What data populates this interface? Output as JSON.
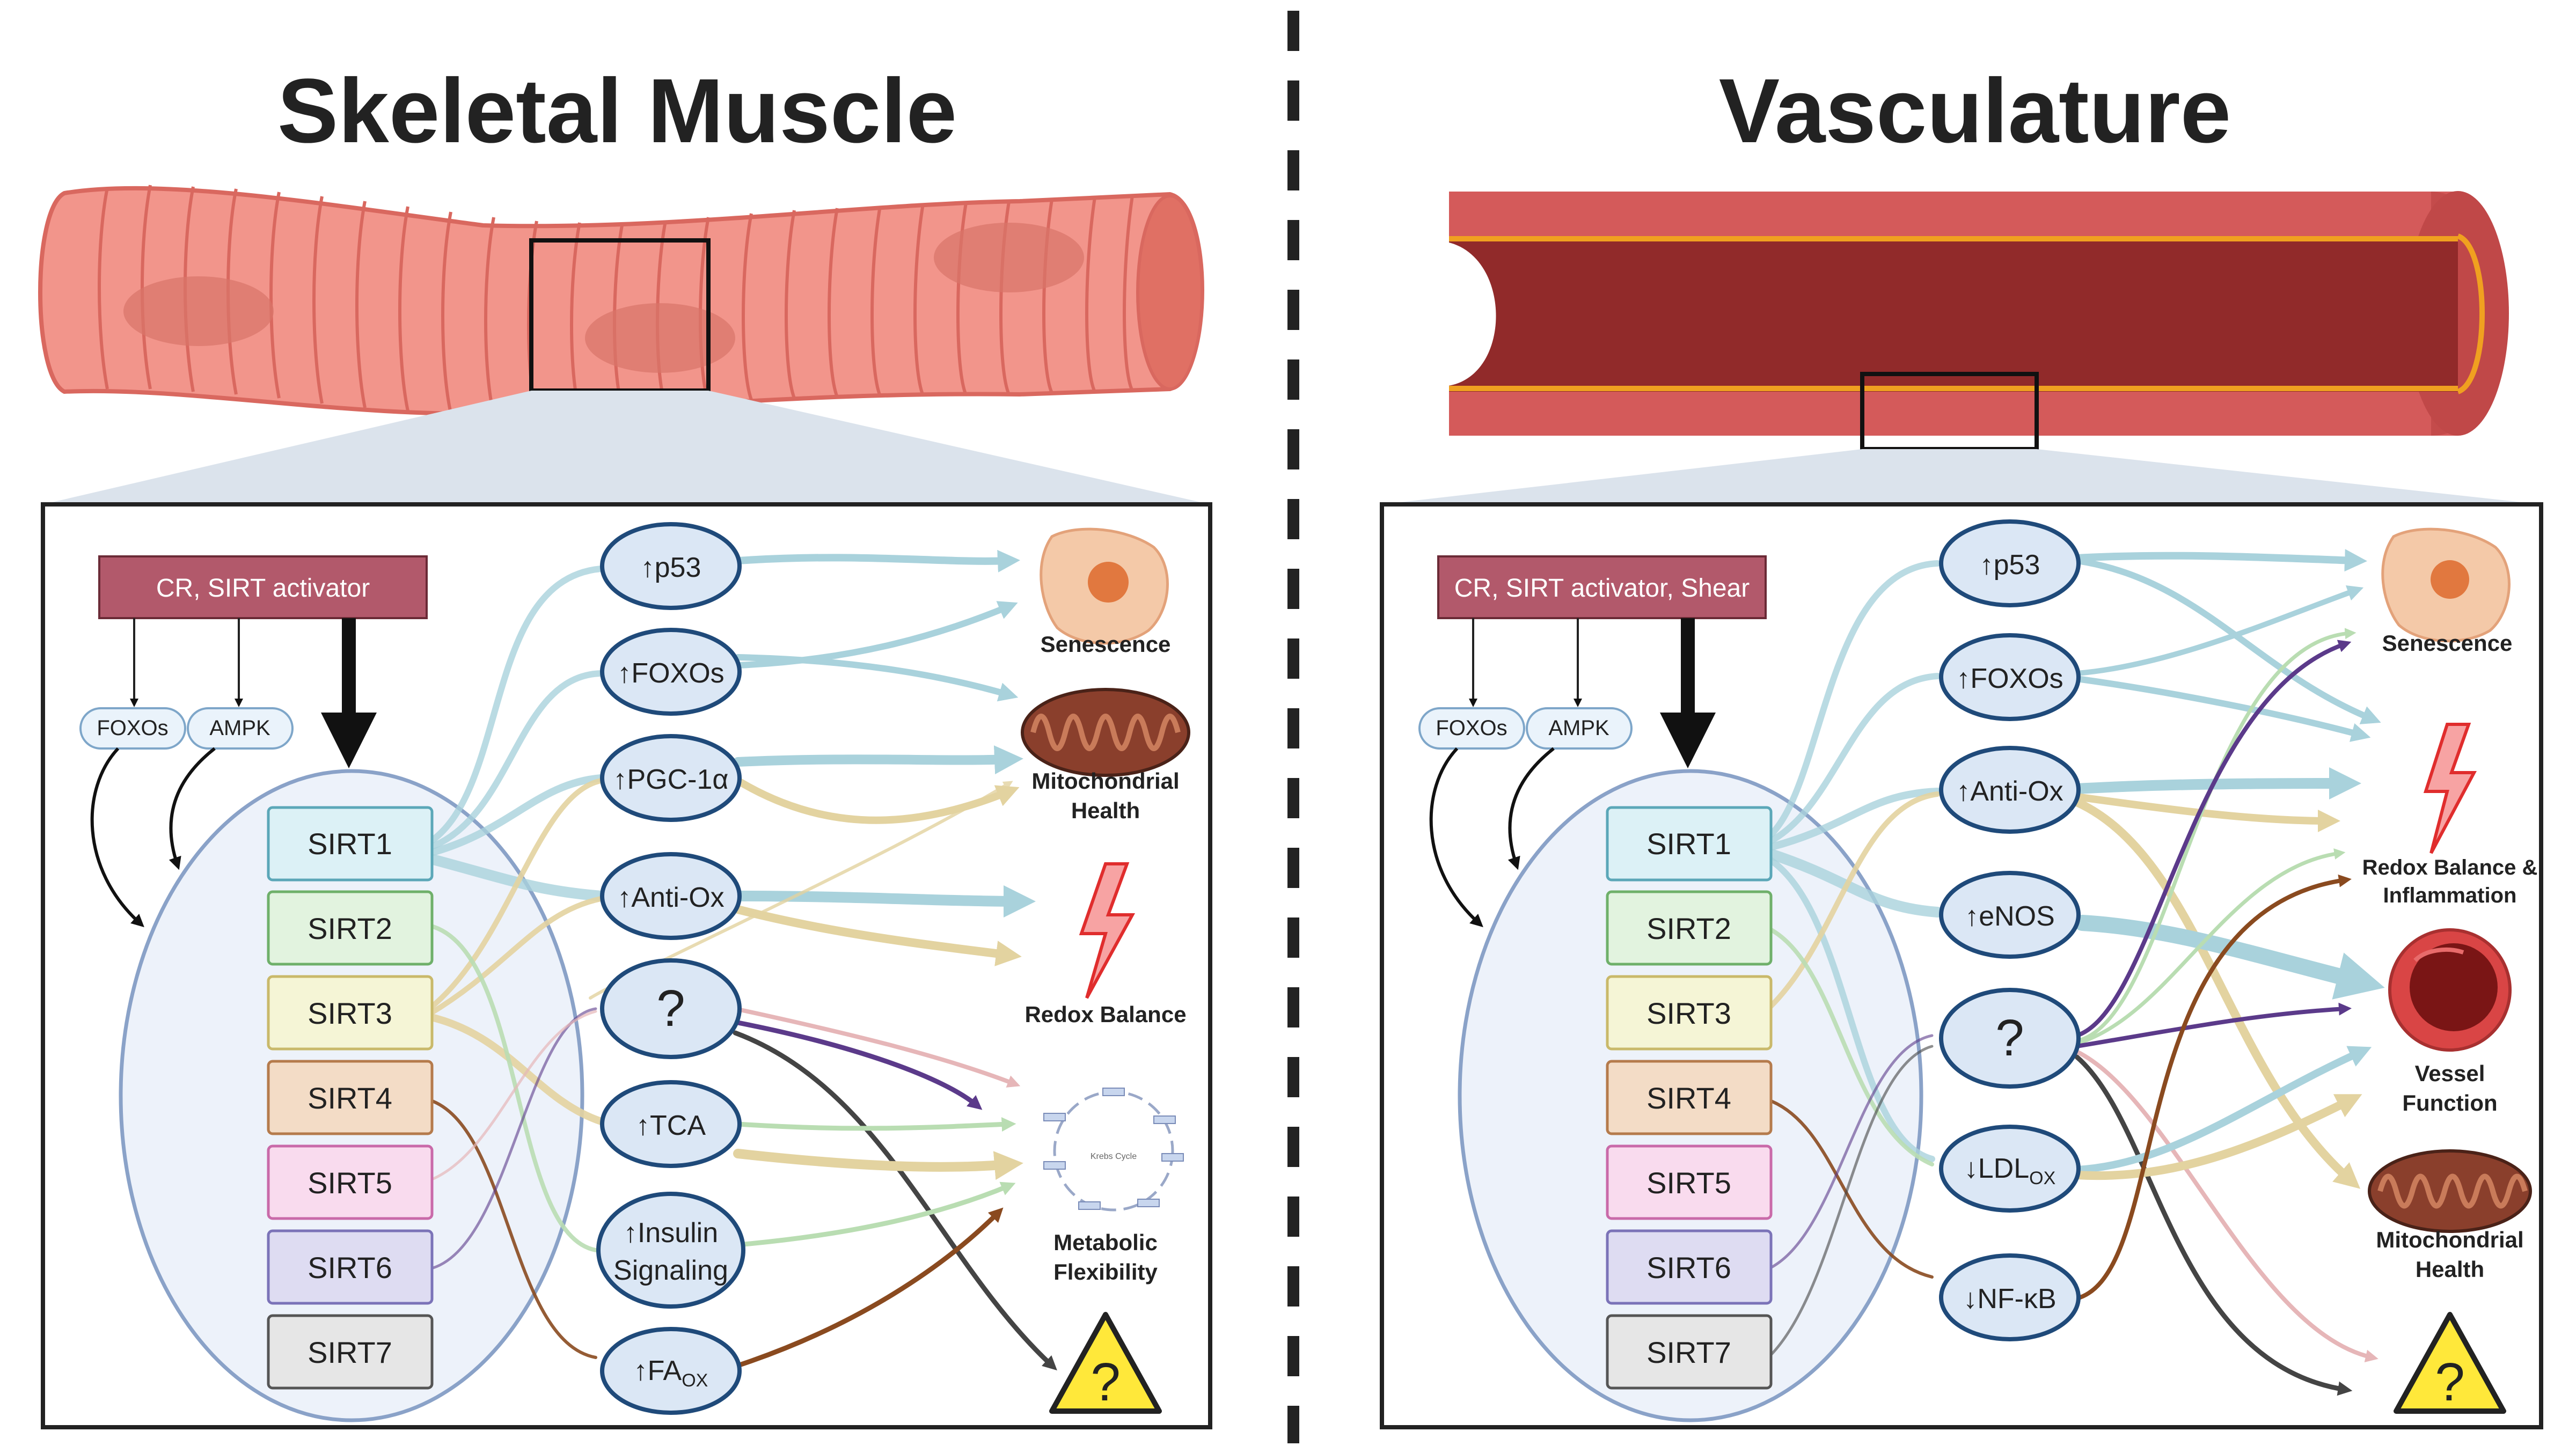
{
  "titles": {
    "left": "Skeletal Muscle",
    "right": "Vasculature"
  },
  "colors": {
    "muscle": "#f2958b",
    "vessel_outer": "#d45a5a",
    "vessel_lumen": "#912a2a",
    "sirt1": "#dcf1f6",
    "sirt2": "#e2f3df",
    "sirt3": "#f5f5d6",
    "sirt4": "#f3dcc6",
    "sirt5": "#f9dbee",
    "sirt6": "#dedcf2",
    "sirt7": "#e6e6e6",
    "arrow_blue": "#a9d2dc",
    "arrow_tan": "#e3d3a0",
    "arrow_green": "#b9ddb2",
    "arrow_purple": "#5b3a8a",
    "arrow_brown": "#8a4a1f",
    "arrow_dark": "#444444",
    "arrow_pink": "#e6b6b8"
  },
  "left": {
    "stimulus": "CR, SIRT activator",
    "regulators": [
      "FOXOs",
      "AMPK"
    ],
    "sirtuins": [
      "SIRT1",
      "SIRT2",
      "SIRT3",
      "SIRT4",
      "SIRT5",
      "SIRT6",
      "SIRT7"
    ],
    "mediators": [
      {
        "arrow": "↑",
        "text": "p53"
      },
      {
        "arrow": "↑",
        "text": "FOXOs"
      },
      {
        "arrow": "↑",
        "text": "PGC-1α"
      },
      {
        "arrow": "↑",
        "text": "Anti-Ox"
      },
      {
        "arrow": "",
        "text": "?"
      },
      {
        "arrow": "↑",
        "text": "TCA"
      },
      {
        "arrow": "↑",
        "text": "Insulin",
        "text2": "Signaling"
      },
      {
        "arrow": "↑",
        "text": "FA",
        "sub": "OX"
      }
    ],
    "outcomes": [
      {
        "line1": "Senescence",
        "line2": "",
        "icon": "senescent-cell-icon"
      },
      {
        "line1": "Mitochondrial",
        "line2": "Health",
        "icon": "mitochondrion-icon"
      },
      {
        "line1": "Redox Balance",
        "line2": "",
        "icon": "lightning-icon"
      },
      {
        "line1": "Metabolic",
        "line2": "Flexibility",
        "icon": "krebs-cycle-icon"
      },
      {
        "line1": "",
        "line2": "",
        "icon": "warning-question-icon"
      }
    ],
    "icon_text": {
      "krebs": "Krebs Cycle",
      "warning": "?"
    }
  },
  "right": {
    "stimulus": "CR, SIRT activator, Shear",
    "regulators": [
      "FOXOs",
      "AMPK"
    ],
    "sirtuins": [
      "SIRT1",
      "SIRT2",
      "SIRT3",
      "SIRT4",
      "SIRT5",
      "SIRT6",
      "SIRT7"
    ],
    "mediators": [
      {
        "arrow": "↑",
        "text": "p53"
      },
      {
        "arrow": "↑",
        "text": "FOXOs"
      },
      {
        "arrow": "↑",
        "text": "Anti-Ox"
      },
      {
        "arrow": "↑",
        "text": "eNOS"
      },
      {
        "arrow": "",
        "text": "?"
      },
      {
        "arrow": "↓",
        "text": "LDL",
        "sub": "OX"
      },
      {
        "arrow": "↓",
        "text": "NF-κB"
      }
    ],
    "outcomes": [
      {
        "line1": "Senescence",
        "line2": "",
        "icon": "senescent-cell-icon"
      },
      {
        "line1": "Redox Balance &",
        "line2": "Inflammation",
        "icon": "lightning-icon"
      },
      {
        "line1": "Vessel",
        "line2": "Function",
        "icon": "vessel-cross-section-icon"
      },
      {
        "line1": "Mitochondrial",
        "line2": "Health",
        "icon": "mitochondrion-icon"
      },
      {
        "line1": "",
        "line2": "",
        "icon": "warning-question-icon"
      }
    ],
    "icon_text": {
      "warning": "?"
    }
  }
}
